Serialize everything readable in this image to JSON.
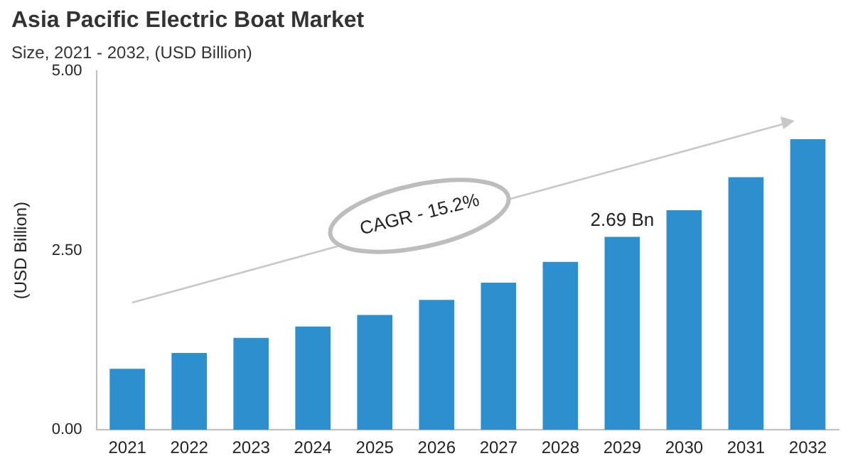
{
  "chart_data": {
    "type": "bar",
    "title": "Asia Pacific Electric Boat Market",
    "subtitle": "Size, 2021 - 2032, (USD Billion)",
    "ylabel": "(USD Billion)",
    "categories": [
      "2021",
      "2022",
      "2023",
      "2024",
      "2025",
      "2026",
      "2027",
      "2028",
      "2029",
      "2030",
      "2031",
      "2032"
    ],
    "values": [
      0.85,
      1.07,
      1.28,
      1.44,
      1.6,
      1.81,
      2.05,
      2.34,
      2.69,
      3.06,
      3.52,
      4.05
    ],
    "color": "#2e8fce",
    "ylim": [
      0,
      5
    ],
    "yticks": [
      {
        "value": 0,
        "label": "0.00"
      },
      {
        "value": 2.5,
        "label": "2.50"
      },
      {
        "value": 5,
        "label": "5.00"
      }
    ],
    "grid": false,
    "legend": false,
    "annotations": [
      {
        "text": "2.69 Bn",
        "x": "2029",
        "y": 2.69
      },
      "CAGR - 15.2%"
    ]
  }
}
